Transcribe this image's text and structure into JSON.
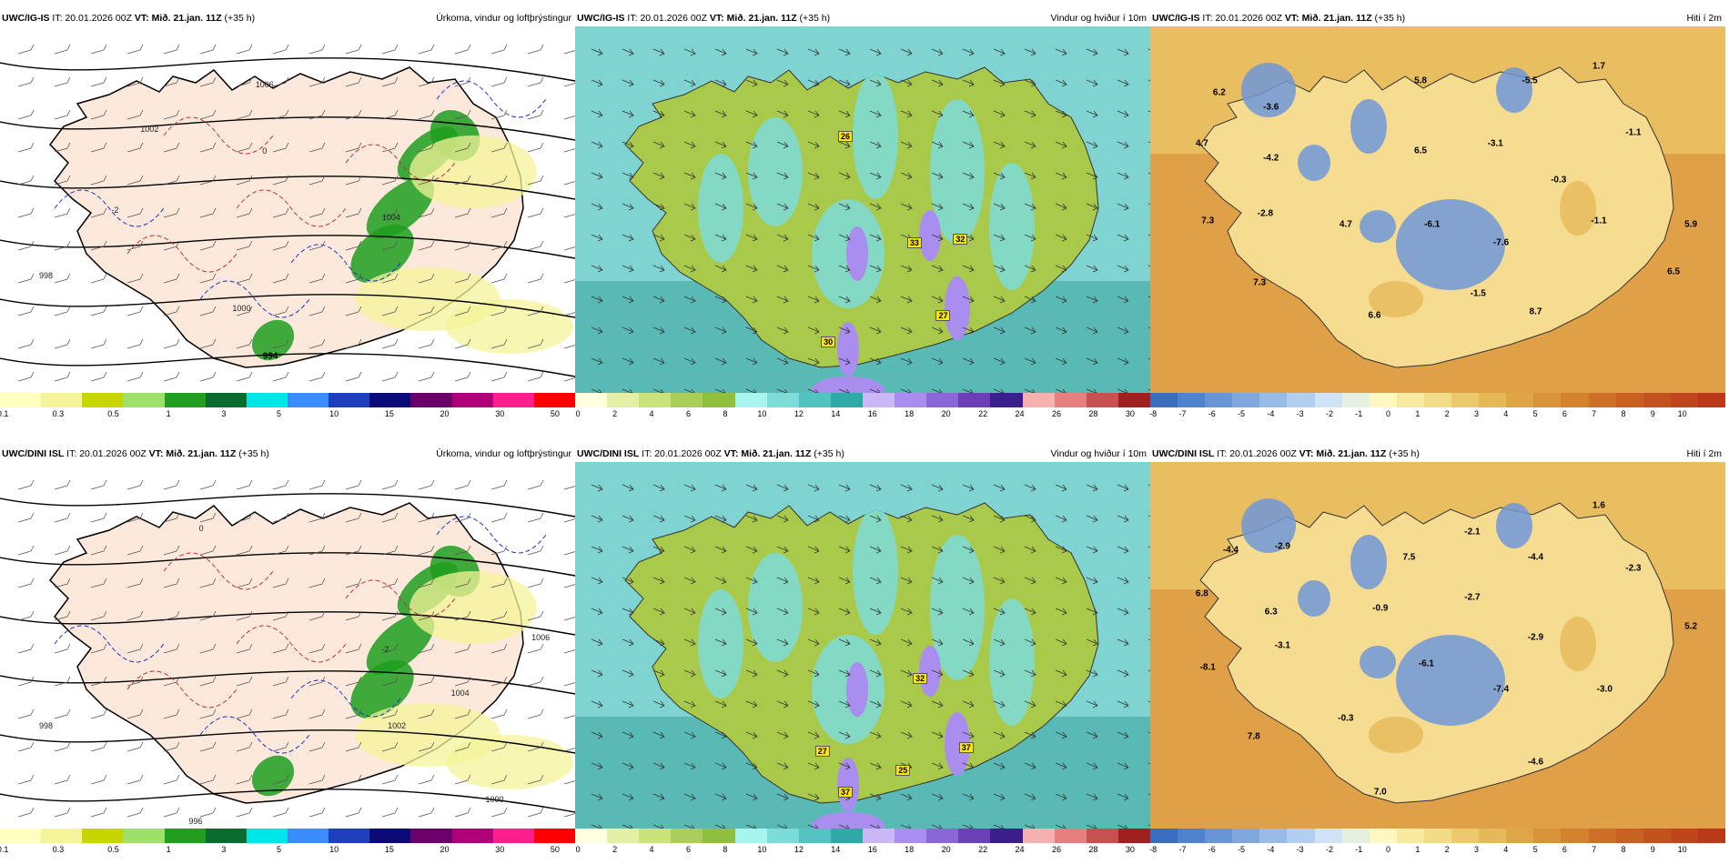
{
  "rows": [
    {
      "model": "UWC/IG-IS",
      "it_label": "IT:",
      "it_value": "20.01.2026 00Z",
      "vt_label": "VT:",
      "vt_value": "Mið. 21.jan. 11Z",
      "lead": "(+35 h)",
      "panels": [
        {
          "title": "Úrkoma, vindur og loftþrýstingur",
          "type": "precip",
          "values": [
            {
              "text": "994",
              "x": 47,
              "y": 90,
              "style": "bold"
            },
            {
              "text": "1002",
              "x": 26,
              "y": 28,
              "style": "iso"
            },
            {
              "text": "1004",
              "x": 68,
              "y": 52,
              "style": "iso"
            },
            {
              "text": "1000",
              "x": 42,
              "y": 77,
              "style": "iso"
            },
            {
              "text": "998",
              "x": 8,
              "y": 68,
              "style": "iso"
            },
            {
              "text": "1006",
              "x": 46,
              "y": 16,
              "style": "iso"
            },
            {
              "text": "-2",
              "x": 20,
              "y": 50,
              "style": "iso"
            },
            {
              "text": "0",
              "x": 46,
              "y": 34,
              "style": "iso"
            }
          ]
        },
        {
          "title": "Vindur og hviður í 10m",
          "type": "wind",
          "values": [
            {
              "text": "26",
              "x": 47,
              "y": 30,
              "style": "box"
            },
            {
              "text": "33",
              "x": 59,
              "y": 59,
              "style": "box"
            },
            {
              "text": "32",
              "x": 67,
              "y": 58,
              "style": "box"
            },
            {
              "text": "27",
              "x": 64,
              "y": 79,
              "style": "box"
            },
            {
              "text": "30",
              "x": 44,
              "y": 86,
              "style": "box"
            }
          ]
        },
        {
          "title": "Hiti í 2m",
          "type": "temp",
          "values": [
            {
              "text": "6.2",
              "x": 12,
              "y": 18
            },
            {
              "text": "-3.6",
              "x": 21,
              "y": 22
            },
            {
              "text": "5.8",
              "x": 47,
              "y": 15
            },
            {
              "text": "-5.5",
              "x": 66,
              "y": 15
            },
            {
              "text": "1.7",
              "x": 78,
              "y": 11
            },
            {
              "text": "4.7",
              "x": 9,
              "y": 32
            },
            {
              "text": "-4.2",
              "x": 21,
              "y": 36
            },
            {
              "text": "6.5",
              "x": 47,
              "y": 34
            },
            {
              "text": "-3.1",
              "x": 60,
              "y": 32
            },
            {
              "text": "-1.1",
              "x": 84,
              "y": 29
            },
            {
              "text": "-0.3",
              "x": 71,
              "y": 42
            },
            {
              "text": "7.3",
              "x": 10,
              "y": 53
            },
            {
              "text": "-2.8",
              "x": 20,
              "y": 51
            },
            {
              "text": "4.7",
              "x": 34,
              "y": 54
            },
            {
              "text": "-6.1",
              "x": 49,
              "y": 54
            },
            {
              "text": "-7.6",
              "x": 61,
              "y": 59
            },
            {
              "text": "-1.1",
              "x": 78,
              "y": 53
            },
            {
              "text": "5.9",
              "x": 94,
              "y": 54
            },
            {
              "text": "7.3",
              "x": 19,
              "y": 70
            },
            {
              "text": "-1.5",
              "x": 57,
              "y": 73
            },
            {
              "text": "6.5",
              "x": 91,
              "y": 67
            },
            {
              "text": "6.6",
              "x": 39,
              "y": 79
            },
            {
              "text": "8.7",
              "x": 67,
              "y": 78
            }
          ]
        }
      ]
    },
    {
      "model": "UWC/DINI ISL",
      "it_label": "IT:",
      "it_value": "20.01.2026 00Z",
      "vt_label": "VT:",
      "vt_value": "Mið. 21.jan. 11Z",
      "lead": "(+35 h)",
      "panels": [
        {
          "title": "Úrkoma, vindur og loftþrýstingur",
          "type": "precip",
          "values": [
            {
              "text": "1006",
              "x": 94,
              "y": 48,
              "style": "iso"
            },
            {
              "text": "1004",
              "x": 80,
              "y": 63,
              "style": "iso"
            },
            {
              "text": "1002",
              "x": 69,
              "y": 72,
              "style": "iso"
            },
            {
              "text": "1000",
              "x": 86,
              "y": 92,
              "style": "iso"
            },
            {
              "text": "998",
              "x": 8,
              "y": 72,
              "style": "iso"
            },
            {
              "text": "996",
              "x": 34,
              "y": 98,
              "style": "iso"
            },
            {
              "text": "-2",
              "x": 67,
              "y": 51,
              "style": "iso"
            },
            {
              "text": "0",
              "x": 35,
              "y": 18,
              "style": "iso"
            }
          ]
        },
        {
          "title": "Vindur og hviður í 10m",
          "type": "wind",
          "values": [
            {
              "text": "32",
              "x": 60,
              "y": 59,
              "style": "box"
            },
            {
              "text": "37",
              "x": 68,
              "y": 78,
              "style": "box"
            },
            {
              "text": "25",
              "x": 57,
              "y": 84,
              "style": "box"
            },
            {
              "text": "27",
              "x": 43,
              "y": 79,
              "style": "box"
            },
            {
              "text": "37",
              "x": 47,
              "y": 90,
              "style": "box"
            }
          ]
        },
        {
          "title": "Hiti í 2m",
          "type": "temp",
          "values": [
            {
              "text": "1.6",
              "x": 78,
              "y": 12
            },
            {
              "text": "-4.4",
              "x": 14,
              "y": 24
            },
            {
              "text": "-2.9",
              "x": 23,
              "y": 23
            },
            {
              "text": "7.5",
              "x": 45,
              "y": 26
            },
            {
              "text": "-2.1",
              "x": 56,
              "y": 19
            },
            {
              "text": "-4.4",
              "x": 67,
              "y": 26
            },
            {
              "text": "-2.3",
              "x": 84,
              "y": 29
            },
            {
              "text": "6.8",
              "x": 9,
              "y": 36
            },
            {
              "text": "6.3",
              "x": 21,
              "y": 41
            },
            {
              "text": "-0.9",
              "x": 40,
              "y": 40
            },
            {
              "text": "-2.7",
              "x": 56,
              "y": 37
            },
            {
              "text": "-2.9",
              "x": 67,
              "y": 48
            },
            {
              "text": "5.2",
              "x": 94,
              "y": 45
            },
            {
              "text": "-3.1",
              "x": 23,
              "y": 50
            },
            {
              "text": "-6.1",
              "x": 48,
              "y": 55
            },
            {
              "text": "-7.4",
              "x": 61,
              "y": 62
            },
            {
              "text": "-3.0",
              "x": 79,
              "y": 62
            },
            {
              "text": "-8.1",
              "x": 10,
              "y": 56
            },
            {
              "text": "-0.3",
              "x": 34,
              "y": 70
            },
            {
              "text": "7.8",
              "x": 18,
              "y": 75
            },
            {
              "text": "-4.6",
              "x": 67,
              "y": 82
            },
            {
              "text": "7.0",
              "x": 40,
              "y": 90
            }
          ]
        }
      ]
    }
  ],
  "colorbars": {
    "precip": {
      "colors": [
        "#ffffbf",
        "#f4f49a",
        "#c7d600",
        "#9de06a",
        "#1f9e1f",
        "#0a6b2e",
        "#00e6e6",
        "#3b8cff",
        "#1f3fbf",
        "#0a0a7a",
        "#6b006b",
        "#b0007a",
        "#ff1f8c",
        "#ff0000"
      ],
      "ticks": [
        "0.1",
        "0.3",
        "0.5",
        "1",
        "3",
        "5",
        "10",
        "15",
        "20",
        "30",
        "50"
      ]
    },
    "wind": {
      "colors": [
        "#ffffe0",
        "#e4f0a6",
        "#c9e37a",
        "#a9cf58",
        "#8fbf3c",
        "#a8f5f0",
        "#7ddcd8",
        "#52c3c0",
        "#2fa8a8",
        "#c9b8f5",
        "#a98ef0",
        "#8a66d6",
        "#6a3fb8",
        "#3a1f8c",
        "#f7b0b0",
        "#e68080",
        "#c85050",
        "#a02020"
      ],
      "ticks": [
        "0",
        "2",
        "4",
        "6",
        "8",
        "10",
        "12",
        "14",
        "16",
        "18",
        "20",
        "22",
        "24",
        "26",
        "28",
        "30"
      ]
    },
    "temp": {
      "colors": [
        "#3a6fc0",
        "#4f82cc",
        "#6795d6",
        "#80a8df",
        "#98bbe8",
        "#b3cfef",
        "#cfe2f6",
        "#e6f0e0",
        "#fdf7c0",
        "#f8eaa0",
        "#f2dc88",
        "#ecca6c",
        "#e6b958",
        "#dfa646",
        "#d99438",
        "#d3822e",
        "#cc7028",
        "#c86022",
        "#c4521e",
        "#bf451c",
        "#ba391a"
      ],
      "ticks": [
        "-8",
        "-7",
        "-6",
        "-5",
        "-4",
        "-3",
        "-2",
        "-1",
        "0",
        "1",
        "2",
        "3",
        "4",
        "5",
        "6",
        "7",
        "8",
        "9",
        "10"
      ]
    }
  },
  "colors": {
    "land_precip": "#fde8dc",
    "sea_precip": "#ffffff",
    "wind_sea": "#7fd3d0",
    "wind_land": "#a9c94a",
    "temp_sea": "#e0a048",
    "temp_land": "#f6dc90",
    "temp_cold": "#6f98d8"
  }
}
